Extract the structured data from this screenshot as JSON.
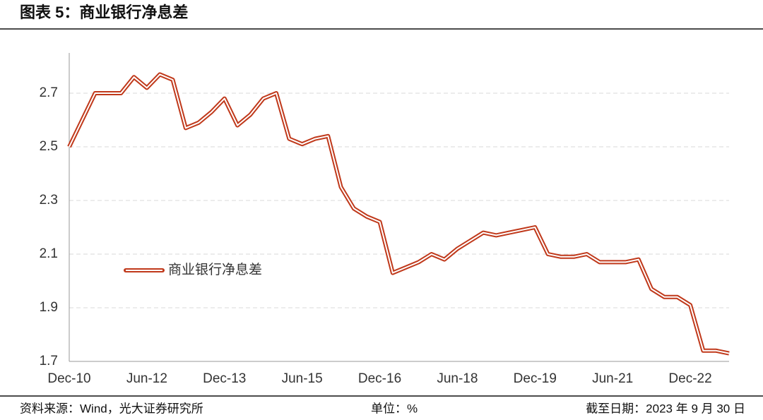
{
  "chart_data": {
    "type": "line",
    "title": "图表 5：商业银行净息差",
    "source": "资料来源：Wind，光大证券研究所",
    "unit": "单位：%",
    "date": "截至日期：2023 年 9 月 30 日",
    "categories": [
      "Dec-10",
      null,
      null,
      null,
      null,
      null,
      "Jun-12",
      null,
      null,
      null,
      null,
      null,
      "Dec-13",
      null,
      null,
      null,
      null,
      null,
      "Jun-15",
      null,
      null,
      null,
      null,
      null,
      "Dec-16",
      null,
      null,
      null,
      null,
      null,
      "Jun-18",
      null,
      null,
      null,
      null,
      null,
      "Dec-19",
      null,
      null,
      null,
      null,
      null,
      "Jun-21",
      null,
      null,
      null,
      null,
      null,
      "Dec-22",
      null,
      null,
      null
    ],
    "series": [
      {
        "name": "商业银行净息差",
        "color": "#c0391b",
        "values": [
          2.5,
          2.6,
          2.7,
          2.7,
          2.7,
          2.76,
          2.72,
          2.77,
          2.75,
          2.57,
          2.59,
          2.63,
          2.68,
          2.58,
          2.62,
          2.68,
          2.7,
          2.53,
          2.51,
          2.53,
          2.54,
          2.35,
          2.27,
          2.24,
          2.22,
          2.03,
          2.05,
          2.07,
          2.1,
          2.08,
          2.12,
          2.15,
          2.18,
          2.17,
          2.18,
          2.19,
          2.2,
          2.1,
          2.09,
          2.09,
          2.1,
          2.07,
          2.07,
          2.07,
          2.08,
          1.97,
          1.94,
          1.94,
          1.91,
          1.74,
          1.74,
          1.73
        ]
      }
    ],
    "ylim": [
      1.7,
      2.85
    ],
    "yticks": [
      1.7,
      1.9,
      2.1,
      2.3,
      2.5,
      2.7
    ],
    "grid": true,
    "legend": "left"
  }
}
